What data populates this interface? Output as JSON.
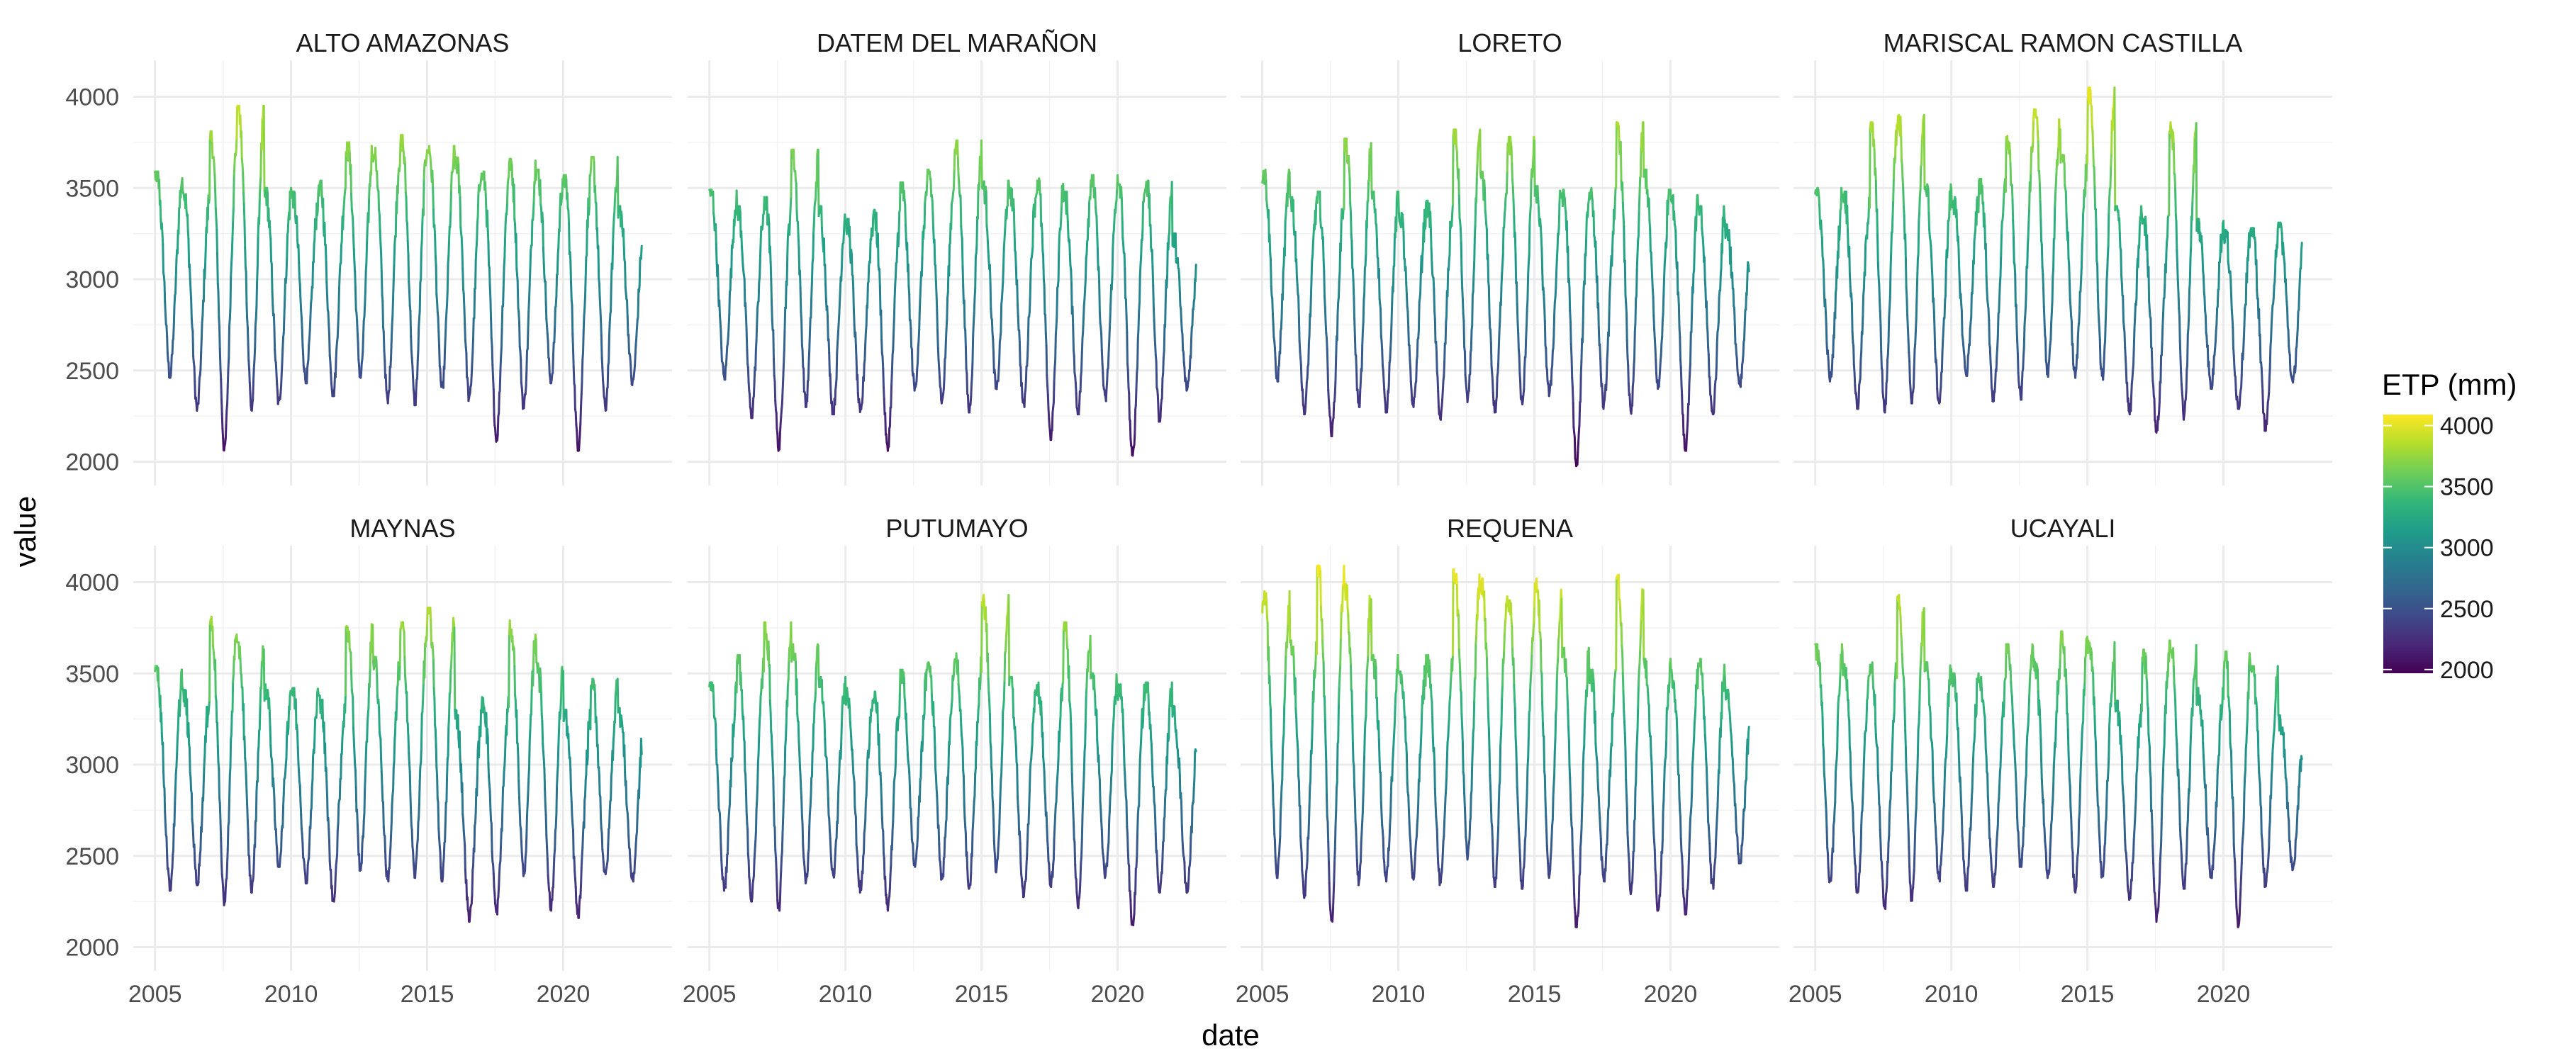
{
  "chart_data": {
    "type": "line",
    "layout": "facet-grid 2x4",
    "xlabel": "date",
    "ylabel": "value",
    "x_ticks": [
      2005,
      2010,
      2015,
      2020
    ],
    "xlim": [
      2004.2,
      2024.0
    ],
    "y_ticks": [
      2000,
      2500,
      3000,
      3500,
      4000
    ],
    "ylim": [
      1870,
      4200
    ],
    "grid": true,
    "legend": {
      "title": "ETP (mm)",
      "position": "right",
      "type": "colorbar",
      "palette": "viridis",
      "colors": [
        "#440154",
        "#482878",
        "#3e4a89",
        "#31688e",
        "#26828e",
        "#1f9e89",
        "#35b779",
        "#6ece58",
        "#b5de2b",
        "#fde725"
      ],
      "range": [
        1970,
        4090
      ],
      "ticks": [
        2000,
        2500,
        3000,
        3500,
        4000
      ]
    },
    "series": [
      {
        "name": "ALTO AMAZONAS",
        "start": 2005.0,
        "end": 2022.9,
        "annual_max": [
          3590,
          3480,
          3810,
          3950,
          3500,
          3480,
          3540,
          3750,
          3720,
          3790,
          3730,
          3670,
          3590,
          3660,
          3600,
          3570,
          3670,
          3400
        ],
        "annual_min": [
          2460,
          2280,
          2050,
          2280,
          2310,
          2430,
          2360,
          2460,
          2320,
          2310,
          2380,
          2330,
          2110,
          2290,
          2430,
          2060,
          2280,
          2420
        ]
      },
      {
        "name": "DATEM DEL MARAÑON",
        "start": 2005.0,
        "end": 2022.9,
        "annual_max": [
          3490,
          3400,
          3450,
          3710,
          3400,
          3330,
          3380,
          3530,
          3600,
          3760,
          3540,
          3500,
          3560,
          3480,
          3570,
          3520,
          3540,
          3250
        ],
        "annual_min": [
          2450,
          2240,
          2060,
          2300,
          2260,
          2250,
          2060,
          2390,
          2320,
          2270,
          2380,
          2300,
          2120,
          2260,
          2330,
          2010,
          2220,
          2390
        ]
      },
      {
        "name": "LORETO",
        "start": 2005.0,
        "end": 2022.9,
        "annual_max": [
          3600,
          3450,
          3480,
          3770,
          3480,
          3380,
          3430,
          3820,
          3590,
          3780,
          3510,
          3490,
          3500,
          3860,
          3600,
          3460,
          3400,
          3300
        ],
        "annual_min": [
          2440,
          2260,
          2140,
          2300,
          2270,
          2300,
          2230,
          2320,
          2270,
          2300,
          2360,
          1970,
          2290,
          2250,
          2400,
          2060,
          2250,
          2400
        ]
      },
      {
        "name": "MARISCAL RAMON CASTILLA",
        "start": 2005.0,
        "end": 2022.9,
        "annual_max": [
          3500,
          3480,
          3860,
          3900,
          3520,
          3450,
          3550,
          3790,
          3930,
          3680,
          4050,
          3400,
          3350,
          3860,
          3330,
          3270,
          3280,
          3310
        ],
        "annual_min": [
          2440,
          2290,
          2270,
          2320,
          2320,
          2470,
          2330,
          2340,
          2460,
          2460,
          2440,
          2260,
          2160,
          2230,
          2400,
          2290,
          2170,
          2420
        ]
      },
      {
        "name": "MAYNAS",
        "start": 2005.0,
        "end": 2022.9,
        "annual_max": [
          3540,
          3410,
          3810,
          3670,
          3440,
          3420,
          3380,
          3770,
          3590,
          3780,
          3860,
          3300,
          3370,
          3790,
          3560,
          3300,
          3470,
          3310
        ],
        "annual_min": [
          2310,
          2340,
          2230,
          2300,
          2440,
          2350,
          2250,
          2420,
          2360,
          2380,
          2360,
          2140,
          2180,
          2390,
          2200,
          2160,
          2380,
          2360
        ]
      },
      {
        "name": "PUTUMAYO",
        "start": 2005.0,
        "end": 2022.9,
        "annual_max": [
          3450,
          3600,
          3780,
          3660,
          3480,
          3420,
          3400,
          3520,
          3560,
          3610,
          3930,
          3480,
          3450,
          3780,
          3500,
          3440,
          3450,
          3320
        ],
        "annual_min": [
          2310,
          2250,
          2200,
          2350,
          2380,
          2300,
          2200,
          2440,
          2370,
          2320,
          2410,
          2270,
          2330,
          2200,
          2380,
          2110,
          2300,
          2300
        ]
      },
      {
        "name": "REQUENA",
        "start": 2005.0,
        "end": 2022.9,
        "annual_max": [
          3950,
          3680,
          4090,
          3990,
          3600,
          3540,
          3600,
          4070,
          4020,
          3900,
          4020,
          3640,
          3520,
          4040,
          3580,
          3520,
          3580,
          3410
        ],
        "annual_min": [
          2380,
          2270,
          2110,
          2340,
          2360,
          2370,
          2340,
          2480,
          2330,
          2320,
          2380,
          2110,
          2360,
          2280,
          2200,
          2180,
          2320,
          2460
        ]
      },
      {
        "name": "UCAYALI",
        "start": 2005.0,
        "end": 2022.9,
        "annual_max": [
          3660,
          3550,
          3560,
          3930,
          3560,
          3500,
          3480,
          3660,
          3580,
          3730,
          3680,
          3350,
          3630,
          3680,
          3420,
          3620,
          3540,
          3270
        ],
        "annual_min": [
          2350,
          2300,
          2210,
          2250,
          2360,
          2310,
          2330,
          2440,
          2380,
          2300,
          2380,
          2260,
          2140,
          2320,
          2380,
          2110,
          2330,
          2420
        ]
      }
    ]
  }
}
